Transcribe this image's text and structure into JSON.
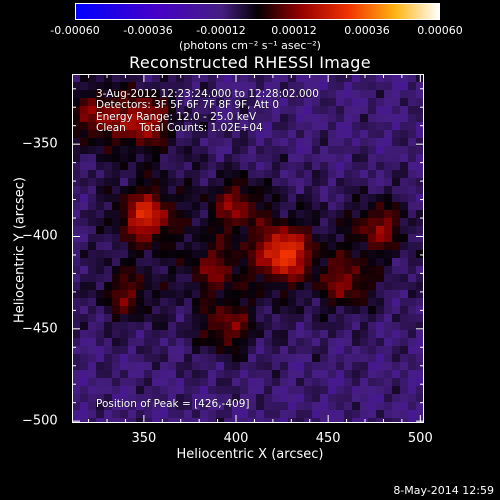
{
  "colorbar": {
    "ticks": [
      "-0.00060",
      "-0.00036",
      "-0.00012",
      "0.00012",
      "0.00036",
      "0.00060"
    ],
    "unit": "(photons cm⁻² s⁻¹ asec⁻²)"
  },
  "chart_data": {
    "type": "heatmap",
    "title": "Reconstructed RHESSI Image",
    "xlabel": "Heliocentric X (arcsec)",
    "ylabel": "Heliocentric Y (arcsec)",
    "xlim": [
      311,
      502
    ],
    "ylim": [
      -501,
      -312
    ],
    "x_ticks": [
      "350",
      "400",
      "450",
      "500"
    ],
    "y_ticks": [
      "-350",
      "-400",
      "-450",
      "-500"
    ],
    "color_range": [
      -0.0006,
      0.0006
    ],
    "peak": [
      426,
      -409
    ],
    "bright_regions": [
      {
        "x": 426,
        "y": -409,
        "level": 1.0
      },
      {
        "x": 351,
        "y": -389,
        "level": 0.85
      },
      {
        "x": 350,
        "y": -337,
        "level": 0.7
      },
      {
        "x": 325,
        "y": -335,
        "level": 0.55
      },
      {
        "x": 478,
        "y": -395,
        "level": 0.55
      },
      {
        "x": 400,
        "y": -383,
        "level": 0.5
      },
      {
        "x": 395,
        "y": -449,
        "level": 0.5
      },
      {
        "x": 460,
        "y": -425,
        "level": 0.5
      },
      {
        "x": 340,
        "y": -432,
        "level": 0.45
      },
      {
        "x": 388,
        "y": -418,
        "level": 0.4
      }
    ],
    "annotations": [
      "3-Aug-2012 12:23:24.000 to 12:28:02.000",
      "Detectors: 3F 5F 6F 7F 8F 9F, Att 0",
      "Energy Range: 12.0 - 25.0 keV",
      "Clean    Total Counts: 1.02E+04"
    ],
    "peak_label": "Position of Peak = [426,-409]"
  },
  "footer": "8-May-2014 12:59"
}
